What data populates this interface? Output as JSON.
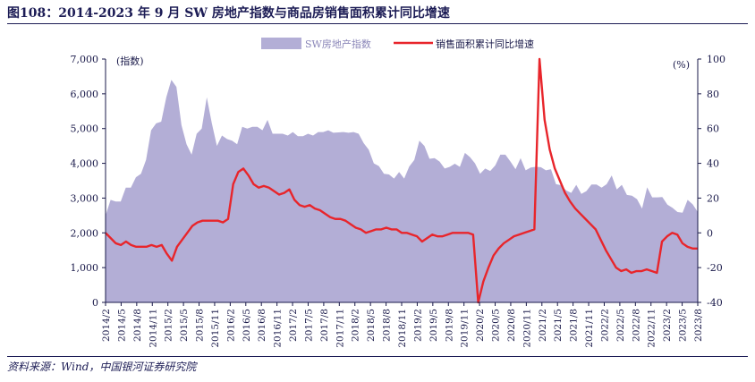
{
  "title": "图108：2014-2023 年 9 月 SW 房地产指数与商品房销售面积累计同比增速",
  "source": "资料来源：Wind，中国银河证券研究院",
  "chart_data": {
    "type": "area",
    "left_axis_label": "(指数)",
    "right_axis_label": "(%)",
    "left_ticks": [
      "0",
      "1,000",
      "2,000",
      "3,000",
      "4,000",
      "5,000",
      "6,000",
      "7,000"
    ],
    "right_ticks": [
      "-40",
      "-20",
      "0",
      "20",
      "40",
      "60",
      "80",
      "100"
    ],
    "ylim_left": [
      0,
      7000
    ],
    "ylim_right": [
      -40,
      100
    ],
    "x_ticks": [
      "2014/2",
      "2014/5",
      "2014/8",
      "2014/11",
      "2015/2",
      "2015/5",
      "2015/8",
      "2015/11",
      "2016/2",
      "2016/5",
      "2016/8",
      "2016/11",
      "2017/2",
      "2017/5",
      "2017/8",
      "2017/11",
      "2018/2",
      "2018/5",
      "2018/8",
      "2018/11",
      "2019/2",
      "2019/5",
      "2019/8",
      "2019/11",
      "2020/2",
      "2020/5",
      "2020/8",
      "2020/11",
      "2021/2",
      "2021/5",
      "2021/8",
      "2021/11",
      "2022/2",
      "2022/5",
      "2022/8",
      "2022/11",
      "2023/2",
      "2023/5",
      "2023/8"
    ],
    "colors": {
      "area": "#b3aed6",
      "line": "#e8252b"
    },
    "series": [
      {
        "name": "SW房地产指数",
        "axis": "left",
        "values": [
          2500,
          2950,
          2900,
          2900,
          3300,
          3300,
          3600,
          3700,
          4100,
          4950,
          5150,
          5200,
          5900,
          6400,
          6200,
          5100,
          4550,
          4250,
          4850,
          5000,
          5900,
          5150,
          4500,
          4800,
          4700,
          4650,
          4550,
          5050,
          5000,
          5050,
          5050,
          4950,
          5250,
          4850,
          4850,
          4850,
          4800,
          4900,
          4780,
          4780,
          4850,
          4800,
          4900,
          4900,
          4950,
          4880,
          4890,
          4900,
          4880,
          4900,
          4850,
          4580,
          4390,
          4000,
          3920,
          3700,
          3680,
          3560,
          3750,
          3560,
          3910,
          4100,
          4650,
          4500,
          4130,
          4150,
          4050,
          3850,
          3900,
          3990,
          3900,
          4300,
          4180,
          4000,
          3700,
          3850,
          3780,
          3940,
          4250,
          4250,
          4050,
          3830,
          4150,
          3800,
          3880,
          3900,
          3890,
          3800,
          3830,
          3400,
          3370,
          3220,
          3150,
          3380,
          3120,
          3200,
          3390,
          3390,
          3300,
          3400,
          3650,
          3250,
          3380,
          3090,
          3070,
          2970,
          2700,
          3310,
          3020,
          3020,
          3030,
          2810,
          2720,
          2600,
          2580,
          2950,
          2820,
          2600
        ]
      },
      {
        "name": "销售面积累计同比增速",
        "axis": "right",
        "values": [
          0,
          -3,
          -6,
          -7,
          -5,
          -7,
          -8,
          -8,
          -8,
          -7,
          -8,
          -7,
          -12,
          -16,
          -8,
          -4,
          0,
          4,
          6,
          7,
          7,
          7,
          7,
          6,
          8,
          28,
          35,
          37,
          33,
          28,
          26,
          27,
          26,
          24,
          22,
          23,
          25,
          19,
          16,
          15,
          16,
          14,
          13,
          11,
          9,
          8,
          8,
          7,
          5,
          3,
          2,
          0,
          1,
          2,
          2,
          3,
          2,
          2,
          0,
          0,
          -1,
          -2,
          -5,
          -3,
          -1,
          -2,
          -2,
          -1,
          0,
          0,
          0,
          0,
          -1,
          -40,
          -28,
          -20,
          -13,
          -9,
          -6,
          -4,
          -2,
          -1,
          0,
          1,
          2,
          100,
          65,
          48,
          37,
          30,
          23,
          18,
          14,
          11,
          8,
          5,
          2,
          -4,
          -10,
          -15,
          -20,
          -22,
          -21,
          -23,
          -22,
          -22,
          -21,
          -22,
          -23,
          -5,
          -2,
          0,
          -1,
          -6,
          -8,
          -9,
          -9
        ]
      }
    ]
  }
}
